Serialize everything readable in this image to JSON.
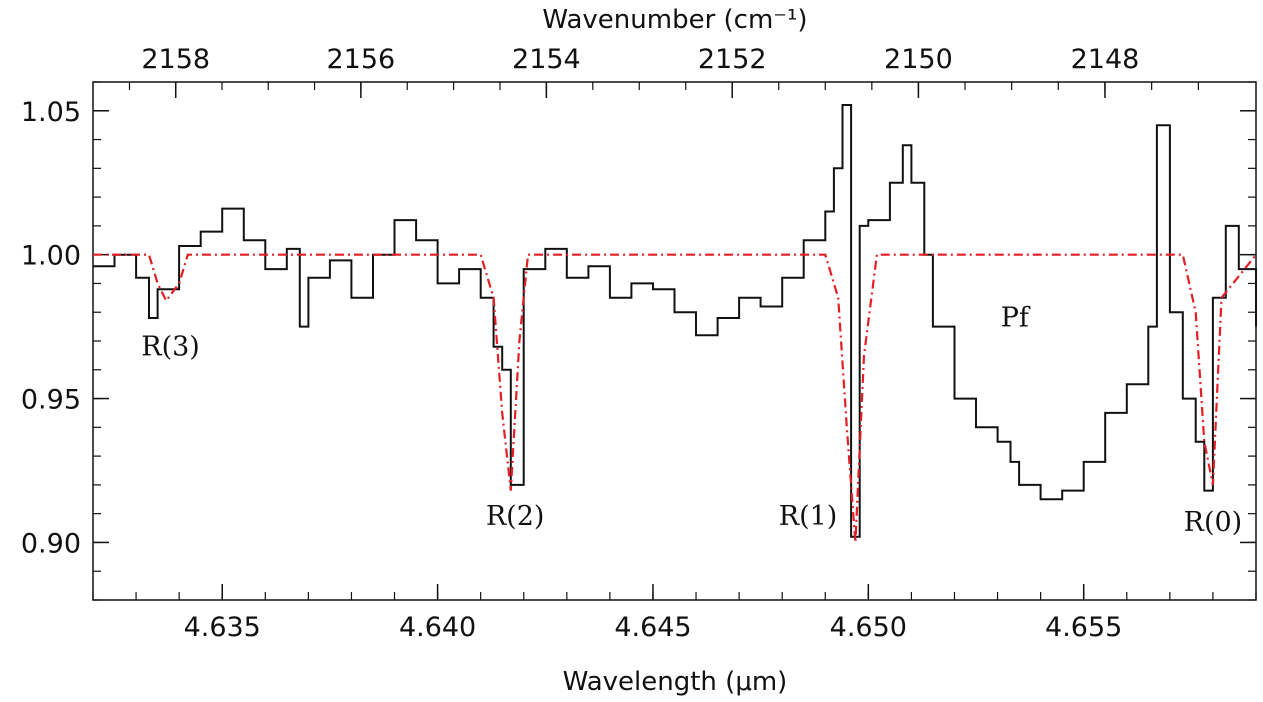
{
  "chart_data": {
    "type": "line",
    "xlabel": "Wavelength (μm)",
    "xlabel_top": "Wavenumber (cm⁻¹)",
    "ylabel": "",
    "xlim": [
      4.632,
      4.659
    ],
    "ylim": [
      0.88,
      1.06
    ],
    "x_ticks": [
      "4.635",
      "4.640",
      "4.645",
      "4.650",
      "4.655"
    ],
    "x_tick_values": [
      4.635,
      4.64,
      4.645,
      4.65,
      4.655
    ],
    "top_ticks": [
      "2158",
      "2156",
      "2154",
      "2152",
      "2150",
      "2148"
    ],
    "top_tick_values": [
      2158,
      2156,
      2154,
      2152,
      2150,
      2148
    ],
    "y_ticks": [
      "0.90",
      "0.95",
      "1.00",
      "1.05"
    ],
    "y_tick_values": [
      0.9,
      0.95,
      1.0,
      1.05
    ],
    "grid": false,
    "series": [
      {
        "color": "#111111",
        "style": "step",
        "x": [
          4.632,
          4.6325,
          4.633,
          4.6333,
          4.6335,
          4.634,
          4.6345,
          4.635,
          4.6355,
          4.636,
          4.6365,
          4.6368,
          4.637,
          4.6375,
          4.638,
          4.6385,
          4.639,
          4.6395,
          4.64,
          4.6405,
          4.641,
          4.6413,
          4.6415,
          4.6417,
          4.642,
          4.6425,
          4.643,
          4.6435,
          4.644,
          4.6445,
          4.645,
          4.6455,
          4.646,
          4.6465,
          4.647,
          4.6475,
          4.648,
          4.6485,
          4.649,
          4.6492,
          4.6494,
          4.6496,
          4.6498,
          4.65,
          4.6505,
          4.6508,
          4.651,
          4.6513,
          4.6515,
          4.652,
          4.6525,
          4.653,
          4.6533,
          4.6535,
          4.654,
          4.6545,
          4.655,
          4.6555,
          4.656,
          4.6565,
          4.6567,
          4.657,
          4.6573,
          4.6576,
          4.6578,
          4.658,
          4.6583,
          4.6586,
          4.659
        ],
        "y": [
          0.996,
          1.0,
          0.992,
          0.978,
          0.988,
          1.003,
          1.008,
          1.016,
          1.005,
          0.995,
          1.002,
          0.975,
          0.992,
          0.998,
          0.985,
          1.0,
          1.012,
          1.005,
          0.99,
          0.995,
          0.985,
          0.968,
          0.96,
          0.92,
          0.995,
          1.002,
          0.992,
          0.996,
          0.985,
          0.99,
          0.988,
          0.98,
          0.972,
          0.978,
          0.985,
          0.982,
          0.992,
          1.005,
          1.015,
          1.03,
          1.052,
          0.902,
          1.01,
          1.012,
          1.025,
          1.038,
          1.025,
          1.0,
          0.975,
          0.95,
          0.94,
          0.935,
          0.928,
          0.92,
          0.915,
          0.918,
          0.928,
          0.945,
          0.955,
          0.975,
          1.045,
          0.98,
          0.95,
          0.935,
          0.918,
          0.985,
          1.01,
          0.995,
          0.975
        ]
      },
      {
        "color": "#e31e24",
        "style": "dash-dot",
        "x": [
          4.632,
          4.6333,
          4.6335,
          4.6337,
          4.634,
          4.6342,
          4.641,
          4.6413,
          4.6415,
          4.6417,
          4.6419,
          4.6421,
          4.649,
          4.6493,
          4.6495,
          4.6497,
          4.6499,
          4.6502,
          4.6573,
          4.6576,
          4.6578,
          4.658,
          4.6582,
          4.659
        ],
        "y": [
          1.0,
          1.0,
          0.99,
          0.984,
          0.99,
          1.0,
          1.0,
          0.985,
          0.945,
          0.918,
          0.97,
          1.0,
          1.0,
          0.985,
          0.94,
          0.9,
          0.965,
          1.0,
          1.0,
          0.98,
          0.935,
          0.92,
          0.985,
          1.0
        ]
      }
    ],
    "annotations": [
      {
        "text": "R(3)",
        "x": 4.6338,
        "y": 0.965
      },
      {
        "text": "R(2)",
        "x": 4.6418,
        "y": 0.906
      },
      {
        "text": "R(1)",
        "x": 4.6486,
        "y": 0.906
      },
      {
        "text": "Pf",
        "x": 4.6534,
        "y": 0.975
      },
      {
        "text": "R(0)",
        "x": 4.658,
        "y": 0.904
      }
    ]
  }
}
